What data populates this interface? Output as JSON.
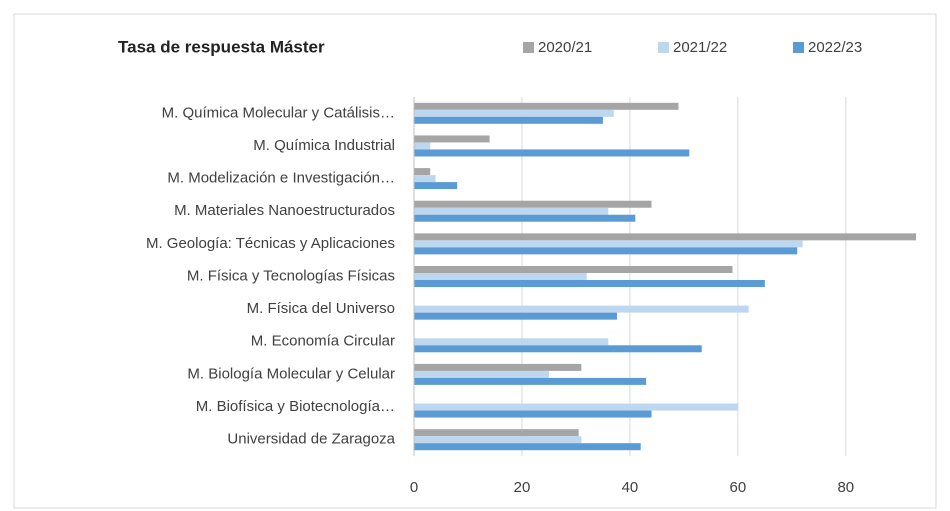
{
  "chart_data": {
    "type": "hbar",
    "title": "Tasa de respuesta Máster",
    "categories": [
      "M. Química Molecular y Catálisis…",
      "M. Química Industrial",
      "M. Modelización e Investigación…",
      "M. Materiales Nanoestructurados",
      "M. Geología: Técnicas y Aplicaciones",
      "M. Física y Tecnologías Físicas",
      "M. Física del Universo",
      "M. Economía Circular",
      "M. Biología Molecular y Celular",
      "M. Biofísica y Biotecnología…",
      "Universidad de Zaragoza"
    ],
    "series": [
      {
        "name": "2020/21",
        "color": "#a5a5a5",
        "values": [
          49,
          14,
          3,
          44,
          93,
          59,
          null,
          null,
          31,
          null,
          30.5
        ]
      },
      {
        "name": "2021/22",
        "color": "#bdd7ee",
        "values": [
          37,
          3,
          4,
          36,
          72,
          32,
          62,
          36,
          25,
          60,
          31
        ]
      },
      {
        "name": "2022/23",
        "color": "#5b9bd5",
        "values": [
          35,
          51,
          8,
          41,
          71,
          65,
          37.6,
          53.3,
          43,
          44,
          42
        ]
      }
    ],
    "xlim": [
      0,
      93
    ],
    "xticks": [
      0,
      20,
      40,
      60,
      80
    ],
    "grid": true,
    "legend": "top"
  }
}
